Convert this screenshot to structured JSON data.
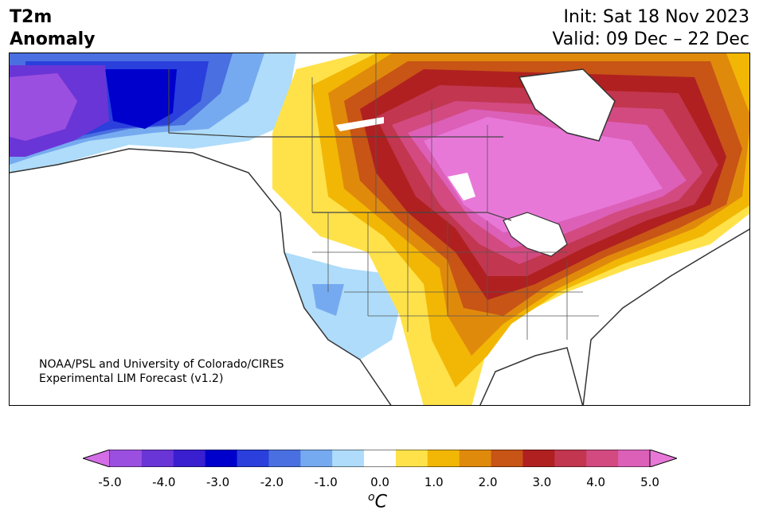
{
  "title": {
    "variable": "T2m",
    "subtitle": "Anomaly",
    "init": "Init: Sat 18 Nov 2023",
    "valid": "Valid: 09 Dec – 22 Dec"
  },
  "credit": {
    "line1": "NOAA/PSL and University of Colorado/CIRES",
    "line2": "Experimental LIM Forecast (v1.2)"
  },
  "colorbar": {
    "units_base": "C",
    "units_sup": "o",
    "ticks": [
      "-5.0",
      "-4.0",
      "-3.0",
      "-2.0",
      "-1.0",
      "0.0",
      "1.0",
      "2.0",
      "3.0",
      "4.0",
      "5.0"
    ],
    "colors": [
      "#d46ee6",
      "#9b4fe0",
      "#6a35d6",
      "#3a1fd0",
      "#0000cc",
      "#2a3fdc",
      "#4a6fe0",
      "#76aaf0",
      "#aedcfa",
      "#ffffff",
      "#ffe24a",
      "#f2b705",
      "#e08a0c",
      "#c85416",
      "#b02020",
      "#c23650",
      "#d24a80",
      "#dc60b8",
      "#e878d8"
    ]
  },
  "map": {
    "region": "North America",
    "features": [
      "T2m anomaly shading",
      "country borders",
      "state/province borders",
      "coastlines",
      "great lakes"
    ]
  }
}
